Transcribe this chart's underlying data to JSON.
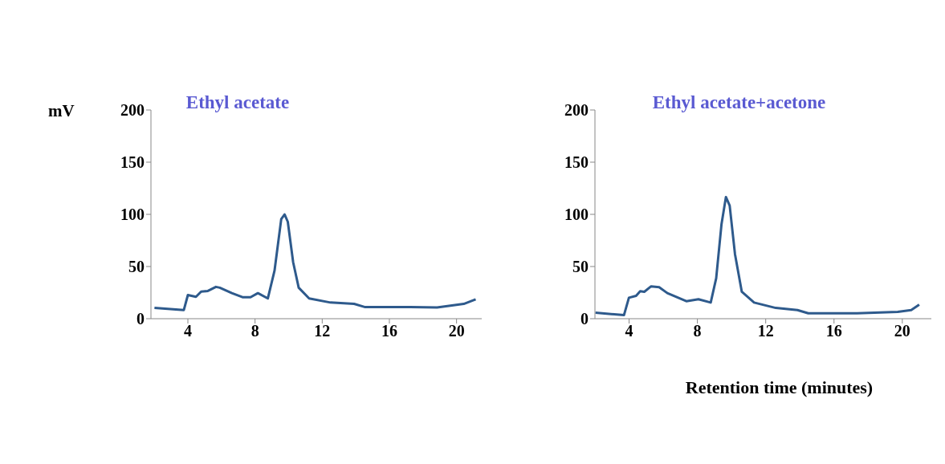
{
  "chart_data": [
    {
      "type": "line",
      "title": "Ethyl acetate",
      "ylabel": "mV",
      "xlim": [
        1.8,
        21.5
      ],
      "xticks": [
        4,
        8,
        12,
        16,
        20
      ],
      "ylim": [
        0,
        200
      ],
      "yticks": [
        0,
        50,
        100,
        150,
        200
      ],
      "grid": false,
      "marker": "none",
      "series": [
        {
          "color": "#2e5a8c",
          "x": [
            2.01,
            3.76,
            4.0,
            4.48,
            4.79,
            5.19,
            5.67,
            5.9,
            6.62,
            7.25,
            7.73,
            8.17,
            8.76,
            9.16,
            9.56,
            9.76,
            9.95,
            10.27,
            10.6,
            11.22,
            12.49,
            13.9,
            14.56,
            17.25,
            18.84,
            20.43,
            21.14
          ],
          "values": [
            10.3,
            8.3,
            22.7,
            21,
            26,
            26.6,
            30.5,
            29.7,
            24.5,
            20.6,
            20.6,
            24.5,
            19.4,
            46,
            95.5,
            99.9,
            92.9,
            54,
            29.7,
            19.4,
            15.5,
            14.2,
            11.1,
            11.1,
            10.8,
            14.2,
            18.6
          ]
        }
      ]
    },
    {
      "type": "line",
      "title": "Ethyl acetate+acetone",
      "xlabel": "Retention time (minutes)",
      "xlim": [
        2,
        21.7
      ],
      "xticks": [
        4,
        8,
        12,
        16,
        20
      ],
      "ylim": [
        0,
        200
      ],
      "yticks": [
        0,
        50,
        100,
        150,
        200
      ],
      "grid": false,
      "marker": "none",
      "series": [
        {
          "color": "#2e5a8c",
          "x": [
            2.03,
            3.7,
            3.99,
            4.41,
            4.65,
            4.89,
            5.29,
            5.76,
            6.24,
            7.35,
            8.06,
            8.78,
            9.1,
            9.41,
            9.67,
            9.89,
            10.2,
            10.6,
            11.32,
            12.59,
            13.86,
            14.49,
            17.35,
            19.73,
            20.52,
            20.99
          ],
          "values": [
            5.7,
            3.4,
            20.1,
            21.9,
            26.3,
            25.8,
            31,
            30.2,
            24.5,
            16.8,
            18.6,
            15.5,
            38.7,
            90.3,
            116.6,
            108.4,
            62,
            25.8,
            15.5,
            10.3,
            8.3,
            5.2,
            5.2,
            6.5,
            8.3,
            13.4
          ]
        }
      ]
    }
  ]
}
